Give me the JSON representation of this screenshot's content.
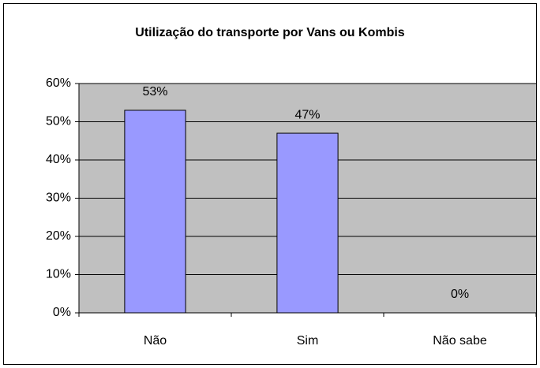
{
  "chart_data": {
    "type": "bar",
    "title": "Utilização do transporte por Vans ou Kombis",
    "categories": [
      "Não",
      "Sim",
      "Não sabe"
    ],
    "values": [
      53,
      47,
      0
    ],
    "value_labels": [
      "53%",
      "47%",
      "0%"
    ],
    "color": "#9999ff",
    "ylim": [
      0,
      60
    ],
    "yticks": [
      {
        "value": 0,
        "label": "0%"
      },
      {
        "value": 10,
        "label": "10%"
      },
      {
        "value": 20,
        "label": "20%"
      },
      {
        "value": 30,
        "label": "30%"
      },
      {
        "value": 40,
        "label": "40%"
      },
      {
        "value": 50,
        "label": "50%"
      },
      {
        "value": 60,
        "label": "60%"
      }
    ],
    "grid": true
  }
}
